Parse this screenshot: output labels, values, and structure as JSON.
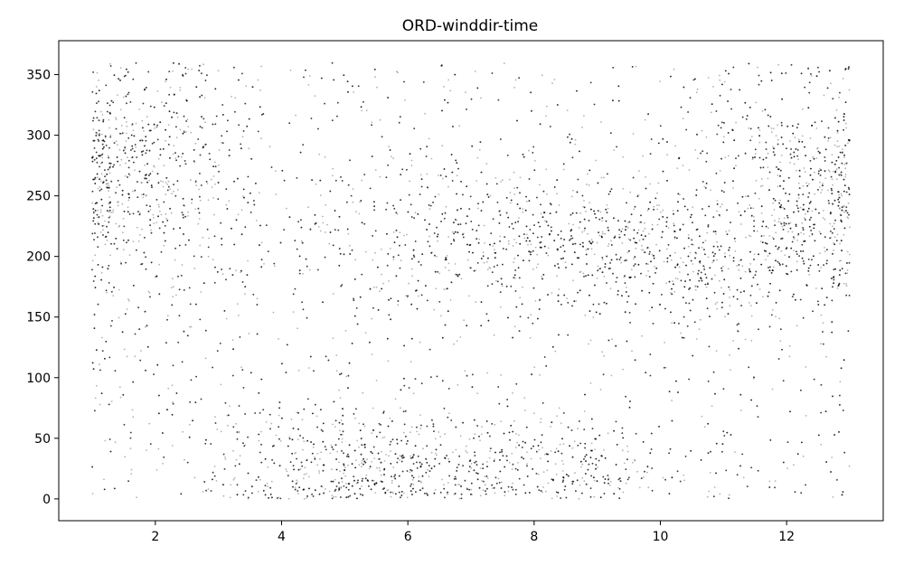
{
  "chart_data": {
    "type": "scatter",
    "title": "ORD-winddir-time",
    "xlabel": "",
    "ylabel": "",
    "xlim": [
      0.47,
      13.53
    ],
    "ylim": [
      -18,
      378
    ],
    "x_ticks": [
      2,
      4,
      6,
      8,
      10,
      12
    ],
    "y_ticks": [
      0,
      50,
      100,
      150,
      200,
      250,
      300,
      350
    ],
    "x_tick_labels": [
      "2",
      "4",
      "6",
      "8",
      "10",
      "12"
    ],
    "y_tick_labels": [
      "0",
      "50",
      "100",
      "150",
      "200",
      "250",
      "300",
      "350"
    ],
    "grid": false,
    "legend": "none",
    "marker_color": "#000000",
    "marker_opacity": 0.3,
    "x_range": [
      1,
      13
    ],
    "y_range": [
      0,
      360
    ],
    "n_points": 12000,
    "density_clusters": [
      {
        "x_center": 1.8,
        "y_center": 265,
        "x_spread": 0.9,
        "y_spread": 45,
        "weight": 0.14
      },
      {
        "x_center": 12.3,
        "y_center": 250,
        "x_spread": 0.8,
        "y_spread": 45,
        "weight": 0.12
      },
      {
        "x_center": 7.5,
        "y_center": 215,
        "x_spread": 1.6,
        "y_spread": 30,
        "weight": 0.12
      },
      {
        "x_center": 10.2,
        "y_center": 195,
        "x_spread": 1.2,
        "y_spread": 25,
        "weight": 0.09
      },
      {
        "x_center": 5.5,
        "y_center": 30,
        "x_spread": 1.4,
        "y_spread": 22,
        "weight": 0.13
      },
      {
        "x_center": 8.5,
        "y_center": 25,
        "x_spread": 0.9,
        "y_spread": 18,
        "weight": 0.05
      }
    ]
  }
}
